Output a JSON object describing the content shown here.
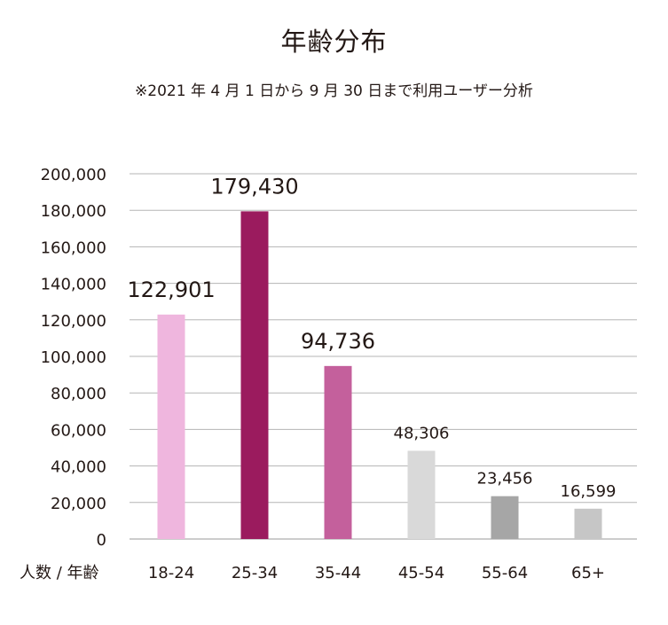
{
  "title": "年齢分布",
  "subtitle": "※2021 年 4 月 1 日から 9 月 30 日まで利用ユーザー分析",
  "chart_data": {
    "type": "bar",
    "title": "年齢分布",
    "subtitle": "※2021 年 4 月 1 日から 9 月 30 日まで利用ユーザー分析",
    "xlabel": "人数 / 年齢",
    "ylabel": "",
    "ylim": [
      0,
      200000
    ],
    "y_ticks": [
      0,
      20000,
      40000,
      60000,
      80000,
      100000,
      120000,
      140000,
      160000,
      180000,
      200000
    ],
    "y_tick_labels": [
      "0",
      "20,000",
      "40,000",
      "60,000",
      "80,000",
      "100,000",
      "120,000",
      "140,000",
      "160,000",
      "180,000",
      "200,000"
    ],
    "grid": true,
    "legend": "none",
    "categories": [
      "18-24",
      "25-34",
      "35-44",
      "45-54",
      "55-64",
      "65+"
    ],
    "values": [
      122901,
      179430,
      94736,
      48306,
      23456,
      16599
    ],
    "value_labels": [
      "122,901",
      "179,430",
      "94,736",
      "48,306",
      "23,456",
      "16,599"
    ],
    "colors": [
      "#efb6de",
      "#9b1b5e",
      "#c4609c",
      "#d9d9d9",
      "#a6a6a6",
      "#c6c6c6"
    ],
    "label_emphasis": [
      "large",
      "large",
      "large",
      "small",
      "small",
      "small"
    ]
  }
}
